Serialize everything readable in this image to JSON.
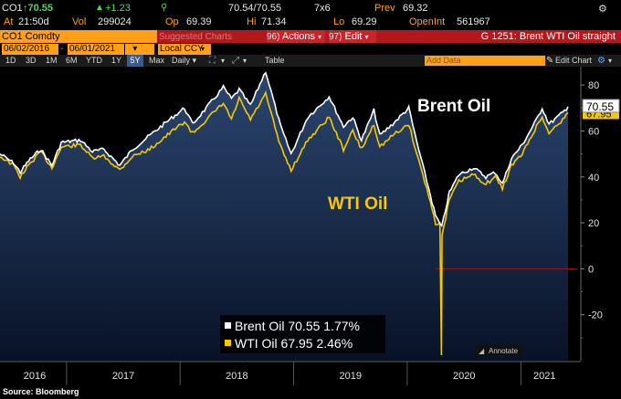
{
  "quote": {
    "ticker": "CO1",
    "last": "↑70.55",
    "change": "+1.23",
    "bid_ask": "70.54/70.55",
    "size": "7x6",
    "prev_label": "Prev",
    "prev": "69.32",
    "at_label": "At",
    "time": "21:50d",
    "vol_label": "Vol",
    "vol": "299024",
    "op_label": "Op",
    "op": "69.39",
    "hi_label": "Hi",
    "hi": "71.34",
    "lo_label": "Lo",
    "lo": "69.29",
    "oi_label": "OpenInt",
    "oi": "561967"
  },
  "header": {
    "security": "CO1 Comdty",
    "suggested": "Suggested Charts",
    "actions": "Actions",
    "actions_num": "96)",
    "edit": "Edit",
    "edit_num": "97)",
    "title": "G 1251: Brent WTI Oil straight"
  },
  "inputs": {
    "start_date": "06/02/2016",
    "end_date": "06/01/2021",
    "currency": "Local CCY",
    "add_data": "Add Data",
    "edit_chart": "Edit Chart"
  },
  "toolbar": {
    "periods": [
      "1D",
      "3D",
      "1M",
      "6M",
      "YTD",
      "1Y",
      "5Y",
      "Max"
    ],
    "active_period": "5Y",
    "frequency": "Daily",
    "table": "Table"
  },
  "chart_data": {
    "type": "line",
    "x_tick_labels": [
      "2016",
      "2017",
      "2018",
      "2019",
      "2020",
      "2021"
    ],
    "y_tick_labels": [
      "80",
      "60",
      "40",
      "20",
      "0",
      "-20"
    ],
    "ylim": [
      -40,
      88
    ],
    "xlim": [
      "2016-06-01",
      "2021-06-01"
    ],
    "grid": false,
    "legend_placement": "bottom-center",
    "series": [
      {
        "name": "Brent Oil",
        "label": "Brent Oil",
        "color": "#ffffff",
        "last": "70.55",
        "change": "1.77%",
        "points": [
          [
            "2016-06-01",
            50
          ],
          [
            "2016-07-15",
            46
          ],
          [
            "2016-08-05",
            42
          ],
          [
            "2016-09-01",
            47
          ],
          [
            "2016-10-10",
            52
          ],
          [
            "2016-11-15",
            45
          ],
          [
            "2016-12-15",
            55
          ],
          [
            "2017-02-15",
            56
          ],
          [
            "2017-03-25",
            51
          ],
          [
            "2017-05-01",
            52
          ],
          [
            "2017-06-21",
            45
          ],
          [
            "2017-08-01",
            52
          ],
          [
            "2017-09-25",
            58
          ],
          [
            "2017-11-10",
            63
          ],
          [
            "2018-01-15",
            70
          ],
          [
            "2018-02-10",
            63
          ],
          [
            "2018-03-20",
            69
          ],
          [
            "2018-05-20",
            79
          ],
          [
            "2018-06-15",
            74
          ],
          [
            "2018-07-10",
            78
          ],
          [
            "2018-08-15",
            71
          ],
          [
            "2018-10-03",
            86
          ],
          [
            "2018-11-20",
            62
          ],
          [
            "2018-12-24",
            50
          ],
          [
            "2019-02-15",
            66
          ],
          [
            "2019-04-25",
            75
          ],
          [
            "2019-06-10",
            62
          ],
          [
            "2019-07-10",
            66
          ],
          [
            "2019-08-07",
            56
          ],
          [
            "2019-09-16",
            69
          ],
          [
            "2019-10-05",
            58
          ],
          [
            "2019-11-15",
            63
          ],
          [
            "2020-01-06",
            70
          ],
          [
            "2020-02-01",
            55
          ],
          [
            "2020-03-10",
            35
          ],
          [
            "2020-04-01",
            23
          ],
          [
            "2020-04-21",
            18
          ],
          [
            "2020-05-15",
            33
          ],
          [
            "2020-06-15",
            41
          ],
          [
            "2020-08-01",
            44
          ],
          [
            "2020-09-10",
            40
          ],
          [
            "2020-10-10",
            42
          ],
          [
            "2020-11-02",
            37
          ],
          [
            "2020-12-01",
            48
          ],
          [
            "2021-01-05",
            54
          ],
          [
            "2021-02-20",
            65
          ],
          [
            "2021-03-10",
            70
          ],
          [
            "2021-04-01",
            63
          ],
          [
            "2021-05-15",
            68
          ],
          [
            "2021-06-01",
            70.55
          ]
        ]
      },
      {
        "name": "WTI Oil",
        "label": "WTI Oil",
        "color": "#f5c800",
        "last": "67.95",
        "change": "2.46%",
        "points": [
          [
            "2016-06-01",
            49
          ],
          [
            "2016-07-15",
            45
          ],
          [
            "2016-08-05",
            40
          ],
          [
            "2016-09-01",
            45
          ],
          [
            "2016-10-10",
            51
          ],
          [
            "2016-11-15",
            44
          ],
          [
            "2016-12-15",
            53
          ],
          [
            "2017-02-15",
            54
          ],
          [
            "2017-03-25",
            48
          ],
          [
            "2017-05-01",
            49
          ],
          [
            "2017-06-21",
            43
          ],
          [
            "2017-08-01",
            49
          ],
          [
            "2017-09-25",
            52
          ],
          [
            "2017-11-10",
            57
          ],
          [
            "2018-01-15",
            64
          ],
          [
            "2018-02-10",
            59
          ],
          [
            "2018-03-20",
            64
          ],
          [
            "2018-05-20",
            72
          ],
          [
            "2018-06-15",
            65
          ],
          [
            "2018-07-10",
            74
          ],
          [
            "2018-08-15",
            65
          ],
          [
            "2018-10-03",
            76
          ],
          [
            "2018-11-20",
            53
          ],
          [
            "2018-12-24",
            43
          ],
          [
            "2019-02-15",
            56
          ],
          [
            "2019-04-25",
            66
          ],
          [
            "2019-06-10",
            52
          ],
          [
            "2019-07-10",
            60
          ],
          [
            "2019-08-07",
            52
          ],
          [
            "2019-09-16",
            63
          ],
          [
            "2019-10-05",
            53
          ],
          [
            "2019-11-15",
            58
          ],
          [
            "2020-01-06",
            63
          ],
          [
            "2020-02-01",
            50
          ],
          [
            "2020-03-10",
            32
          ],
          [
            "2020-04-01",
            20
          ],
          [
            "2020-04-15",
            20
          ],
          [
            "2020-04-20",
            -37.6
          ],
          [
            "2020-04-22",
            14
          ],
          [
            "2020-05-15",
            30
          ],
          [
            "2020-06-15",
            38
          ],
          [
            "2020-08-01",
            41
          ],
          [
            "2020-09-10",
            37
          ],
          [
            "2020-10-10",
            40
          ],
          [
            "2020-11-02",
            35
          ],
          [
            "2020-12-01",
            45
          ],
          [
            "2021-01-05",
            50
          ],
          [
            "2021-02-20",
            62
          ],
          [
            "2021-03-10",
            66
          ],
          [
            "2021-04-01",
            59
          ],
          [
            "2021-05-15",
            65
          ],
          [
            "2021-06-01",
            67.95
          ]
        ]
      }
    ],
    "annotations": {
      "brent": "Brent Oil",
      "wti": "WTI Oil",
      "annotate": "Annotate"
    }
  },
  "source": "Source: Bloomberg"
}
